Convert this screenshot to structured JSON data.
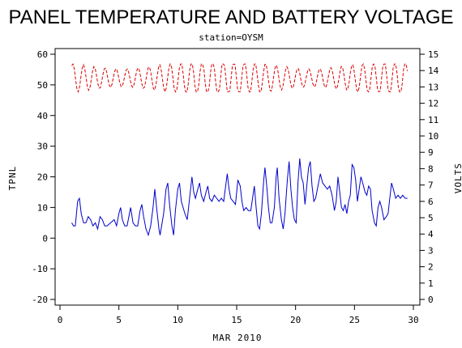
{
  "chart_data": {
    "type": "line",
    "title": "PANEL TEMPERATURE AND BATTERY VOLTAGE",
    "subtitle": "station=OYSM",
    "xlabel": "MAR 2010",
    "ylabel_left": "TPNL",
    "ylabel_right": "VOLTS",
    "xlim": [
      0,
      30
    ],
    "ylim_left": [
      -20,
      60
    ],
    "ylim_right": [
      0,
      15
    ],
    "x_ticks": [
      0,
      5,
      10,
      15,
      20,
      25,
      30
    ],
    "y_left_ticks": [
      -20,
      -10,
      0,
      10,
      20,
      30,
      40,
      50,
      60
    ],
    "y_right_ticks": [
      0,
      1,
      2,
      3,
      4,
      5,
      6,
      7,
      8,
      9,
      10,
      11,
      12,
      13,
      14,
      15
    ],
    "grid": false,
    "series": [
      {
        "axis": "left",
        "color": "#0000cc",
        "style": "solid",
        "points": [
          [
            1.0,
            5
          ],
          [
            1.15,
            4
          ],
          [
            1.3,
            4
          ],
          [
            1.5,
            12
          ],
          [
            1.65,
            13
          ],
          [
            1.8,
            8
          ],
          [
            2.0,
            5
          ],
          [
            2.2,
            5
          ],
          [
            2.4,
            7
          ],
          [
            2.6,
            6
          ],
          [
            2.8,
            4
          ],
          [
            3.0,
            5
          ],
          [
            3.2,
            3
          ],
          [
            3.4,
            7
          ],
          [
            3.6,
            6
          ],
          [
            3.8,
            4
          ],
          [
            4.0,
            4
          ],
          [
            4.3,
            5
          ],
          [
            4.6,
            6
          ],
          [
            4.8,
            4
          ],
          [
            5.0,
            8
          ],
          [
            5.15,
            10
          ],
          [
            5.3,
            6
          ],
          [
            5.5,
            4
          ],
          [
            5.7,
            4
          ],
          [
            5.9,
            8
          ],
          [
            6.0,
            10
          ],
          [
            6.2,
            5
          ],
          [
            6.4,
            4
          ],
          [
            6.6,
            4
          ],
          [
            6.8,
            9
          ],
          [
            6.95,
            11
          ],
          [
            7.1,
            7
          ],
          [
            7.3,
            3
          ],
          [
            7.5,
            1
          ],
          [
            7.7,
            4
          ],
          [
            7.9,
            10
          ],
          [
            8.05,
            16
          ],
          [
            8.2,
            10
          ],
          [
            8.4,
            3
          ],
          [
            8.5,
            1
          ],
          [
            8.8,
            8
          ],
          [
            9.0,
            16
          ],
          [
            9.15,
            18
          ],
          [
            9.3,
            11
          ],
          [
            9.5,
            4
          ],
          [
            9.65,
            1
          ],
          [
            9.8,
            9
          ],
          [
            10.0,
            16
          ],
          [
            10.15,
            18
          ],
          [
            10.3,
            12
          ],
          [
            10.45,
            10
          ],
          [
            10.6,
            8
          ],
          [
            10.8,
            6
          ],
          [
            11.0,
            13
          ],
          [
            11.2,
            20
          ],
          [
            11.35,
            15
          ],
          [
            11.5,
            13
          ],
          [
            11.7,
            16
          ],
          [
            11.85,
            18
          ],
          [
            12.0,
            14
          ],
          [
            12.2,
            12
          ],
          [
            12.4,
            15
          ],
          [
            12.55,
            17
          ],
          [
            12.7,
            13
          ],
          [
            12.9,
            12
          ],
          [
            13.1,
            14
          ],
          [
            13.3,
            13
          ],
          [
            13.5,
            12
          ],
          [
            13.7,
            13
          ],
          [
            13.9,
            12
          ],
          [
            14.1,
            18
          ],
          [
            14.2,
            21
          ],
          [
            14.35,
            16
          ],
          [
            14.5,
            13
          ],
          [
            14.7,
            12
          ],
          [
            14.9,
            11
          ],
          [
            15.1,
            19
          ],
          [
            15.3,
            17
          ],
          [
            15.45,
            12
          ],
          [
            15.6,
            9
          ],
          [
            15.8,
            10
          ],
          [
            16.0,
            9
          ],
          [
            16.2,
            9
          ],
          [
            16.35,
            13
          ],
          [
            16.5,
            17
          ],
          [
            16.65,
            10
          ],
          [
            16.8,
            4
          ],
          [
            16.95,
            3
          ],
          [
            17.1,
            8
          ],
          [
            17.3,
            19
          ],
          [
            17.4,
            23
          ],
          [
            17.55,
            17
          ],
          [
            17.7,
            10
          ],
          [
            17.85,
            5
          ],
          [
            18.0,
            5
          ],
          [
            18.2,
            10
          ],
          [
            18.35,
            20
          ],
          [
            18.45,
            23
          ],
          [
            18.6,
            13
          ],
          [
            18.8,
            6
          ],
          [
            18.95,
            3
          ],
          [
            19.1,
            8
          ],
          [
            19.3,
            19
          ],
          [
            19.45,
            25
          ],
          [
            19.6,
            16
          ],
          [
            19.75,
            10
          ],
          [
            19.9,
            6
          ],
          [
            20.05,
            5
          ],
          [
            20.2,
            18
          ],
          [
            20.35,
            26
          ],
          [
            20.5,
            20
          ],
          [
            20.65,
            18
          ],
          [
            20.8,
            11
          ],
          [
            20.95,
            17
          ],
          [
            21.1,
            23
          ],
          [
            21.25,
            25
          ],
          [
            21.4,
            17
          ],
          [
            21.55,
            12
          ],
          [
            21.7,
            13
          ],
          [
            21.9,
            17
          ],
          [
            22.1,
            21
          ],
          [
            22.3,
            18
          ],
          [
            22.5,
            17
          ],
          [
            22.7,
            16
          ],
          [
            22.9,
            17
          ],
          [
            23.1,
            14
          ],
          [
            23.3,
            9
          ],
          [
            23.45,
            12
          ],
          [
            23.6,
            20
          ],
          [
            23.75,
            15
          ],
          [
            23.9,
            10
          ],
          [
            24.05,
            9
          ],
          [
            24.2,
            11
          ],
          [
            24.35,
            8
          ],
          [
            24.5,
            12
          ],
          [
            24.65,
            14
          ],
          [
            24.8,
            24
          ],
          [
            24.95,
            23
          ],
          [
            25.1,
            19
          ],
          [
            25.25,
            12
          ],
          [
            25.4,
            16
          ],
          [
            25.55,
            20
          ],
          [
            25.7,
            18
          ],
          [
            25.9,
            15
          ],
          [
            26.05,
            14
          ],
          [
            26.2,
            17
          ],
          [
            26.35,
            16
          ],
          [
            26.5,
            9
          ],
          [
            26.7,
            5
          ],
          [
            26.85,
            4
          ],
          [
            27.0,
            10
          ],
          [
            27.15,
            12
          ],
          [
            27.3,
            10
          ],
          [
            27.5,
            6
          ],
          [
            27.7,
            7
          ],
          [
            27.85,
            8
          ],
          [
            28.0,
            13
          ],
          [
            28.15,
            18
          ],
          [
            28.3,
            16
          ],
          [
            28.5,
            13
          ],
          [
            28.7,
            14
          ],
          [
            28.9,
            13
          ],
          [
            29.1,
            14
          ],
          [
            29.3,
            13
          ],
          [
            29.5,
            13
          ]
        ]
      },
      {
        "axis": "right",
        "color": "#dd0000",
        "style": "dashed",
        "cycles_per_day": 2.2,
        "x_start": 1.0,
        "x_end": 29.5,
        "low": 12.7,
        "high": 14.4
      }
    ]
  }
}
